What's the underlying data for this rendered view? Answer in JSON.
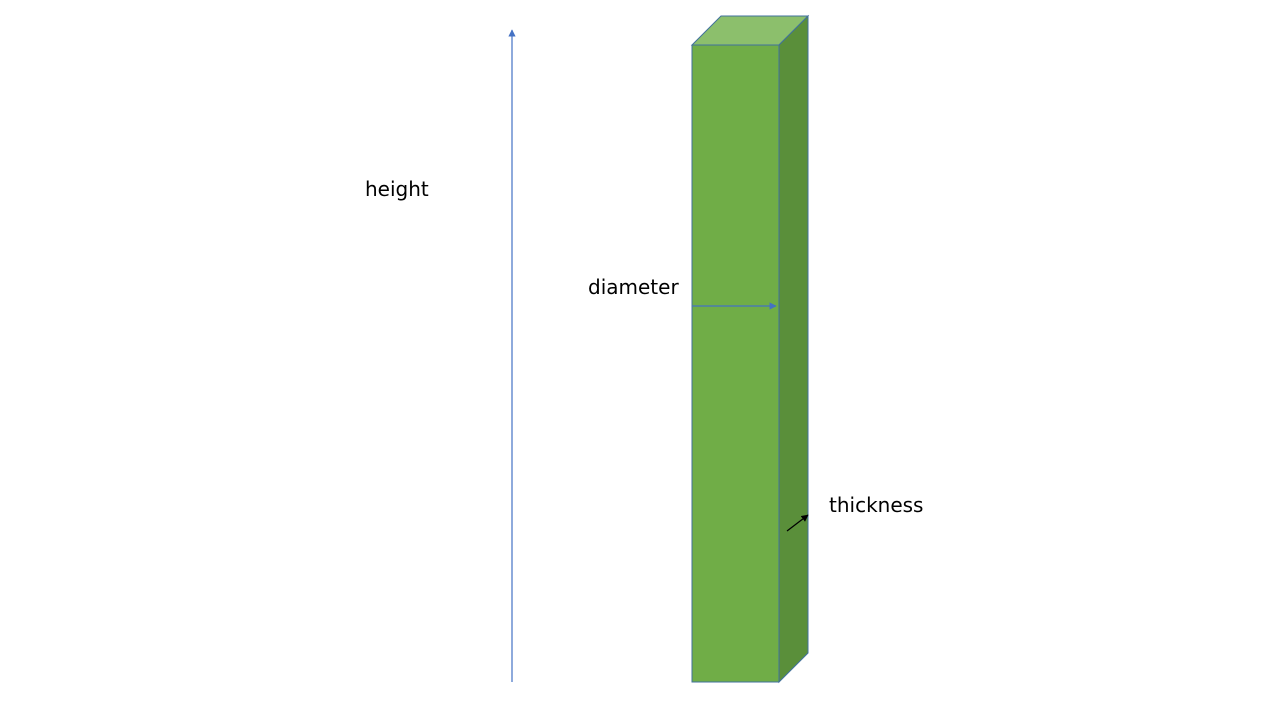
{
  "labels": {
    "height": "height",
    "diameter": "diameter",
    "thickness": "thickness"
  },
  "colors": {
    "front_face": "#70AD47",
    "top_face": "#8CBF6C",
    "side_face": "#5A8F3A",
    "outline": "#41719C",
    "height_arrow": "#4472C4",
    "diameter_arrow": "#4472C4",
    "thickness_arrow": "#000000"
  }
}
